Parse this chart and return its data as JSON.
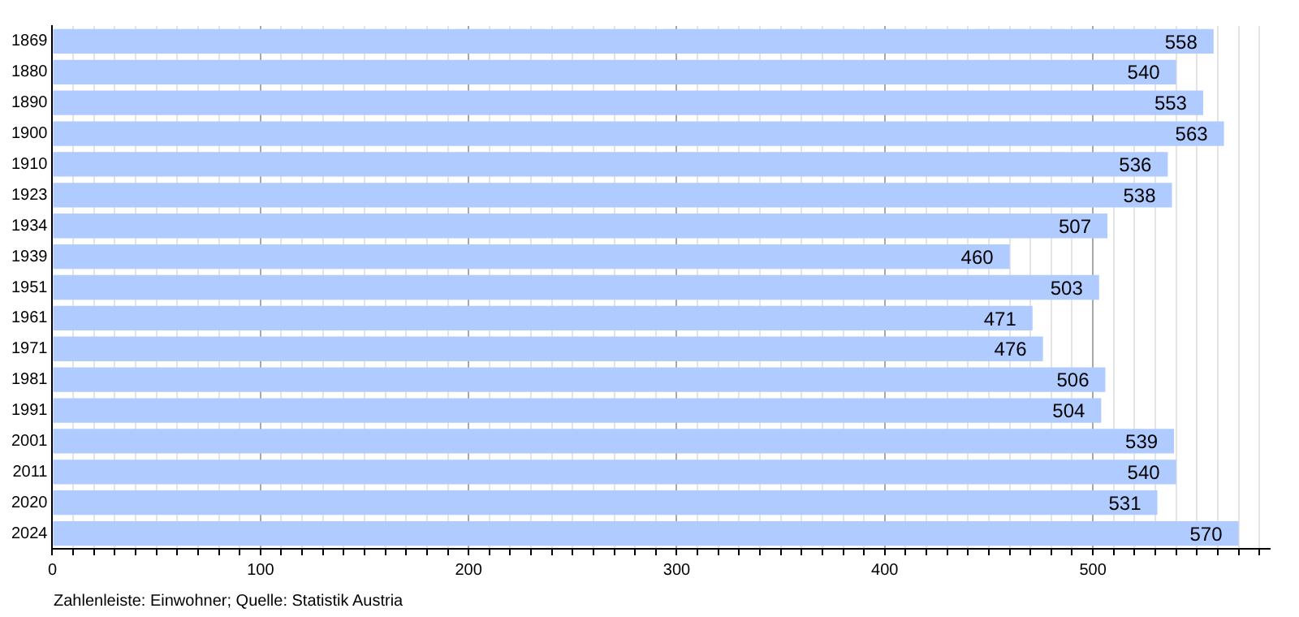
{
  "chart_data": {
    "type": "bar",
    "orientation": "horizontal",
    "categories": [
      "1869",
      "1880",
      "1890",
      "1900",
      "1910",
      "1923",
      "1934",
      "1939",
      "1951",
      "1961",
      "1971",
      "1981",
      "1991",
      "2001",
      "2011",
      "2020",
      "2024"
    ],
    "values": [
      558,
      540,
      553,
      563,
      536,
      538,
      507,
      460,
      503,
      471,
      476,
      506,
      504,
      539,
      540,
      531,
      570
    ],
    "color": "#b0cbff",
    "data_labels": true,
    "grid": "x",
    "xlim": [
      0,
      585
    ],
    "xticks": [
      0,
      {
        "value": 10,
        "label": null
      },
      {
        "value": 20,
        "label": null
      },
      {
        "value": 30,
        "label": null
      },
      {
        "value": 40,
        "label": null
      },
      {
        "value": 50,
        "label": null
      },
      {
        "value": 60,
        "label": null
      },
      {
        "value": 70,
        "label": null
      },
      {
        "value": 80,
        "label": null
      },
      {
        "value": 90,
        "label": null
      },
      100,
      {
        "value": 110,
        "label": null
      },
      {
        "value": 120,
        "label": null
      },
      {
        "value": 130,
        "label": null
      },
      {
        "value": 140,
        "label": null
      },
      {
        "value": 150,
        "label": null
      },
      {
        "value": 160,
        "label": null
      },
      {
        "value": 170,
        "label": null
      },
      {
        "value": 180,
        "label": null
      },
      {
        "value": 190,
        "label": null
      },
      200,
      {
        "value": 210,
        "label": null
      },
      {
        "value": 220,
        "label": null
      },
      {
        "value": 230,
        "label": null
      },
      {
        "value": 240,
        "label": null
      },
      {
        "value": 250,
        "label": null
      },
      {
        "value": 260,
        "label": null
      },
      {
        "value": 270,
        "label": null
      },
      {
        "value": 280,
        "label": null
      },
      {
        "value": 290,
        "label": null
      },
      300,
      {
        "value": 310,
        "label": null
      },
      {
        "value": 320,
        "label": null
      },
      {
        "value": 330,
        "label": null
      },
      {
        "value": 340,
        "label": null
      },
      {
        "value": 350,
        "label": null
      },
      {
        "value": 360,
        "label": null
      },
      {
        "value": 370,
        "label": null
      },
      {
        "value": 380,
        "label": null
      },
      {
        "value": 390,
        "label": null
      },
      400,
      {
        "value": 410,
        "label": null
      },
      {
        "value": 420,
        "label": null
      },
      {
        "value": 430,
        "label": null
      },
      {
        "value": 440,
        "label": null
      },
      {
        "value": 450,
        "label": null
      },
      {
        "value": 460,
        "label": null
      },
      {
        "value": 470,
        "label": null
      },
      {
        "value": 480,
        "label": null
      },
      {
        "value": 490,
        "label": null
      },
      500,
      {
        "value": 510,
        "label": null
      },
      {
        "value": 520,
        "label": null
      },
      {
        "value": 530,
        "label": null
      },
      {
        "value": 540,
        "label": null
      },
      {
        "value": 550,
        "label": null
      },
      {
        "value": 560,
        "label": null
      },
      {
        "value": 570,
        "label": null
      },
      {
        "value": 580,
        "label": null
      }
    ],
    "annotations": [
      "Zahlenleiste: Einwohner; Quelle: Statistik Austria"
    ]
  }
}
